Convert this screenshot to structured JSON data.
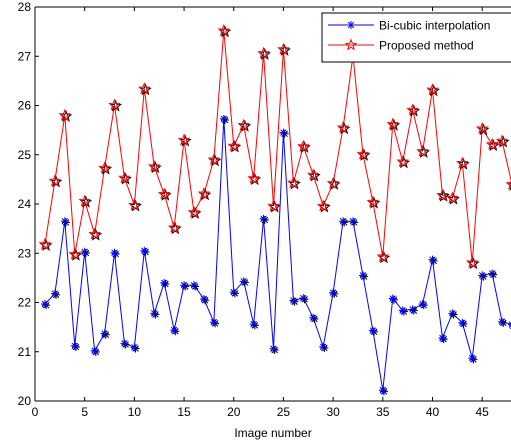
{
  "chart_data": {
    "type": "line",
    "title": "",
    "xlabel": "Image number",
    "ylabel": "",
    "xlim": [
      0,
      48
    ],
    "ylim": [
      20,
      28
    ],
    "xticks": [
      0,
      5,
      10,
      15,
      20,
      25,
      30,
      35,
      40,
      45
    ],
    "yticks": [
      20,
      21,
      22,
      23,
      24,
      25,
      26,
      27,
      28
    ],
    "grid": false,
    "legend_position": "top-right",
    "x": [
      1,
      2,
      3,
      4,
      5,
      6,
      7,
      8,
      9,
      10,
      11,
      12,
      13,
      14,
      15,
      16,
      17,
      18,
      19,
      20,
      21,
      22,
      23,
      24,
      25,
      26,
      27,
      28,
      29,
      30,
      31,
      32,
      33,
      34,
      35,
      36,
      37,
      38,
      39,
      40,
      41,
      42,
      43,
      44,
      45,
      46,
      47,
      48
    ],
    "series": [
      {
        "name": "Bi-cubic interpolation",
        "color": "#0000ff",
        "marker": "asterisk",
        "values": [
          21.97,
          22.18,
          23.65,
          21.12,
          23.03,
          21.02,
          21.37,
          23.01,
          21.17,
          21.09,
          23.05,
          21.78,
          22.4,
          21.44,
          22.35,
          22.35,
          22.07,
          21.6,
          25.73,
          22.21,
          22.43,
          21.56,
          23.7,
          21.06,
          25.45,
          22.04,
          22.09,
          21.69,
          21.1,
          22.2,
          23.65,
          23.65,
          22.55,
          21.43,
          20.22,
          22.08,
          21.84,
          21.86,
          21.97,
          22.87,
          21.28,
          21.78,
          21.59,
          20.87,
          22.55,
          22.59,
          21.61,
          21.55
        ]
      },
      {
        "name": "Proposed method",
        "color": "#ff0000",
        "marker": "pentagram",
        "values": [
          23.18,
          24.47,
          25.8,
          22.98,
          24.06,
          23.39,
          24.73,
          26.01,
          24.53,
          23.98,
          26.34,
          24.76,
          24.2,
          23.52,
          25.3,
          23.83,
          24.21,
          24.9,
          27.52,
          25.18,
          25.6,
          24.52,
          27.06,
          23.96,
          27.14,
          24.43,
          25.17,
          24.59,
          23.96,
          24.42,
          25.55,
          27.01,
          25.01,
          24.04,
          22.93,
          25.62,
          24.86,
          25.91,
          25.07,
          26.32,
          24.18,
          24.12,
          24.83,
          22.81,
          25.53,
          25.21,
          25.28,
          24.4
        ]
      }
    ]
  }
}
